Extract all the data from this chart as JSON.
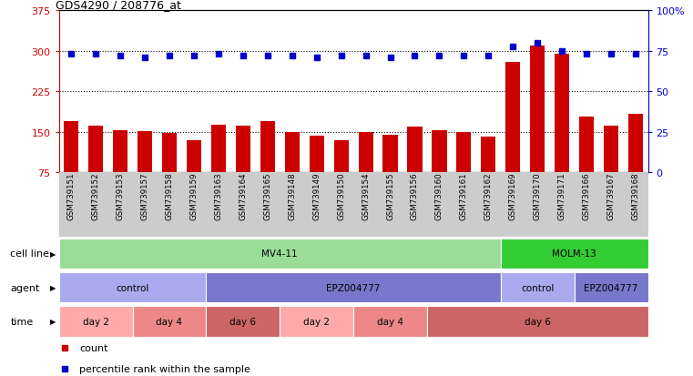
{
  "title": "GDS4290 / 208776_at",
  "samples": [
    "GSM739151",
    "GSM739152",
    "GSM739153",
    "GSM739157",
    "GSM739158",
    "GSM739159",
    "GSM739163",
    "GSM739164",
    "GSM739165",
    "GSM739148",
    "GSM739149",
    "GSM739150",
    "GSM739154",
    "GSM739155",
    "GSM739156",
    "GSM739160",
    "GSM739161",
    "GSM739162",
    "GSM739169",
    "GSM739170",
    "GSM739171",
    "GSM739166",
    "GSM739167",
    "GSM739168"
  ],
  "counts": [
    170,
    162,
    153,
    152,
    148,
    135,
    163,
    161,
    170,
    150,
    143,
    135,
    150,
    145,
    160,
    153,
    150,
    142,
    280,
    310,
    295,
    178,
    162,
    183
  ],
  "percentiles": [
    73,
    73,
    72,
    71,
    72,
    72,
    73,
    72,
    72,
    72,
    71,
    72,
    72,
    71,
    72,
    72,
    72,
    72,
    78,
    80,
    75,
    73,
    73,
    73
  ],
  "ylim_left": [
    75,
    375
  ],
  "ylim_right": [
    0,
    100
  ],
  "yticks_left": [
    75,
    150,
    225,
    300,
    375
  ],
  "yticks_right": [
    0,
    25,
    50,
    75,
    100
  ],
  "bar_color": "#cc0000",
  "dot_color": "#0000cc",
  "bg_color": "#ffffff",
  "cell_line_data": [
    {
      "label": "MV4-11",
      "start": 0,
      "end": 18,
      "color": "#99dd99"
    },
    {
      "label": "MOLM-13",
      "start": 18,
      "end": 24,
      "color": "#33cc33"
    }
  ],
  "agent_data": [
    {
      "label": "control",
      "start": 0,
      "end": 6,
      "color": "#aaaaee"
    },
    {
      "label": "EPZ004777",
      "start": 6,
      "end": 18,
      "color": "#7777cc"
    },
    {
      "label": "control",
      "start": 18,
      "end": 21,
      "color": "#aaaaee"
    },
    {
      "label": "EPZ004777",
      "start": 21,
      "end": 24,
      "color": "#7777cc"
    }
  ],
  "time_data": [
    {
      "label": "day 2",
      "start": 0,
      "end": 3,
      "color": "#ffaaaa"
    },
    {
      "label": "day 4",
      "start": 3,
      "end": 6,
      "color": "#ee8888"
    },
    {
      "label": "day 6",
      "start": 6,
      "end": 9,
      "color": "#cc6666"
    },
    {
      "label": "day 2",
      "start": 9,
      "end": 12,
      "color": "#ffaaaa"
    },
    {
      "label": "day 4",
      "start": 12,
      "end": 15,
      "color": "#ee8888"
    },
    {
      "label": "day 6",
      "start": 15,
      "end": 24,
      "color": "#cc6666"
    }
  ],
  "row_labels": [
    "cell line",
    "agent",
    "time"
  ],
  "legend_items": [
    {
      "marker": "s",
      "color": "#cc0000",
      "label": "count"
    },
    {
      "marker": "s",
      "color": "#0000cc",
      "label": "percentile rank within the sample"
    }
  ]
}
